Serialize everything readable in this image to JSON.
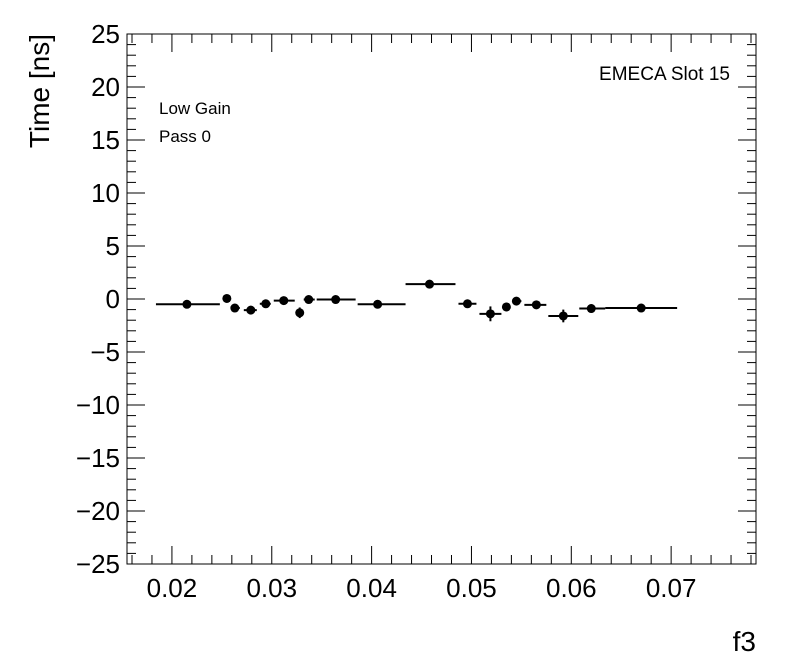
{
  "chart_data": {
    "type": "scatter",
    "title": "",
    "xlabel": "f3",
    "ylabel": "Time [ns]",
    "xlim": [
      0.0155,
      0.0785
    ],
    "ylim": [
      -25,
      25
    ],
    "x_ticks": [
      "0.02",
      "0.03",
      "0.04",
      "0.05",
      "0.06",
      "0.07"
    ],
    "y_ticks": [
      "−25",
      "−20",
      "−15",
      "−10",
      "−5",
      "0",
      "5",
      "10",
      "15",
      "20",
      "25"
    ],
    "annotations": [
      "Low Gain",
      "Pass 0",
      "EMECA Slot 15"
    ],
    "grid": false,
    "points": [
      {
        "x": 0.0215,
        "y": -0.5,
        "xlo": 0.0184,
        "xhi": 0.0248,
        "yerr": 0.3
      },
      {
        "x": 0.0255,
        "y": 0.05,
        "xlo": 0.0253,
        "xhi": 0.0258,
        "yerr": 0.3
      },
      {
        "x": 0.0263,
        "y": -0.85,
        "xlo": 0.0259,
        "xhi": 0.0268,
        "yerr": 0.3
      },
      {
        "x": 0.0279,
        "y": -1.05,
        "xlo": 0.0272,
        "xhi": 0.0285,
        "yerr": 0.4
      },
      {
        "x": 0.0294,
        "y": -0.45,
        "xlo": 0.0288,
        "xhi": 0.0299,
        "yerr": 0.3
      },
      {
        "x": 0.0312,
        "y": -0.15,
        "xlo": 0.0302,
        "xhi": 0.0323,
        "yerr": 0.3
      },
      {
        "x": 0.0328,
        "y": -1.3,
        "xlo": 0.0326,
        "xhi": 0.0331,
        "yerr": 0.5
      },
      {
        "x": 0.0337,
        "y": -0.05,
        "xlo": 0.0332,
        "xhi": 0.0343,
        "yerr": 0.3
      },
      {
        "x": 0.0364,
        "y": -0.05,
        "xlo": 0.0345,
        "xhi": 0.0384,
        "yerr": 0.3
      },
      {
        "x": 0.0406,
        "y": -0.5,
        "xlo": 0.0386,
        "xhi": 0.0434,
        "yerr": 0.3
      },
      {
        "x": 0.0458,
        "y": 1.4,
        "xlo": 0.0434,
        "xhi": 0.0484,
        "yerr": 0.3
      },
      {
        "x": 0.0496,
        "y": -0.45,
        "xlo": 0.0487,
        "xhi": 0.0505,
        "yerr": 0.3
      },
      {
        "x": 0.0519,
        "y": -1.4,
        "xlo": 0.0508,
        "xhi": 0.053,
        "yerr": 0.7
      },
      {
        "x": 0.0535,
        "y": -0.75,
        "xlo": 0.0532,
        "xhi": 0.0538,
        "yerr": 0.4
      },
      {
        "x": 0.0545,
        "y": -0.2,
        "xlo": 0.0541,
        "xhi": 0.055,
        "yerr": 0.3
      },
      {
        "x": 0.0565,
        "y": -0.55,
        "xlo": 0.0553,
        "xhi": 0.0575,
        "yerr": 0.3
      },
      {
        "x": 0.0592,
        "y": -1.6,
        "xlo": 0.0577,
        "xhi": 0.0607,
        "yerr": 0.6
      },
      {
        "x": 0.062,
        "y": -0.9,
        "xlo": 0.0608,
        "xhi": 0.0634,
        "yerr": 0.4
      },
      {
        "x": 0.067,
        "y": -0.85,
        "xlo": 0.0634,
        "xhi": 0.0706,
        "yerr": 0.3
      }
    ]
  }
}
